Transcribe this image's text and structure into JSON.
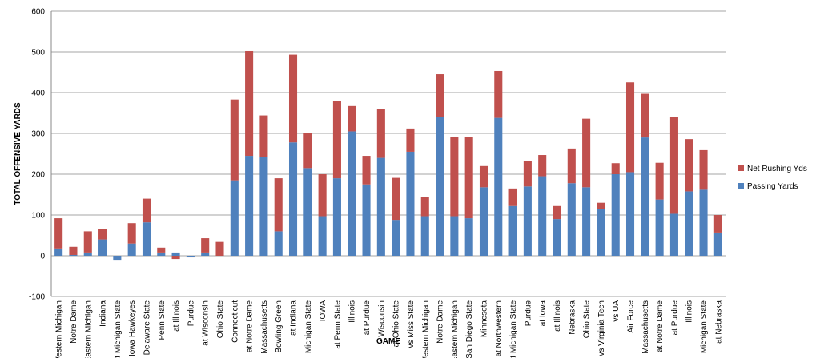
{
  "chart_data": {
    "type": "bar",
    "stacked": true,
    "xlabel": "GAME",
    "ylabel": "TOTAL OFFENSIVE YARDS",
    "ylim": [
      -100,
      600
    ],
    "yticks": [
      -100,
      0,
      100,
      200,
      300,
      400,
      500,
      600
    ],
    "grid": true,
    "legend_position": "right",
    "categories": [
      "Western Michigan",
      "Notre Dame",
      "Eastern Michigan",
      "Indiana",
      "at Michigan State",
      "at Iowa Hawkeyes",
      "Delaware State",
      "Penn State",
      "at Illinois",
      "Purdue",
      "at Wisconsin",
      "Ohio State",
      "Connecticut",
      "at Notre Dame",
      "Massachusetts",
      "Bowling Green",
      "at Indiana",
      "Michigan State",
      "IOWA",
      "at Penn State",
      "Illinois",
      "at Purdue",
      "Wisconsin",
      "at Ohio State",
      "vs Miss State",
      "Western Michigan",
      "Notre Dame",
      "Eastern Michigan",
      "San Diego State",
      "Minnesota",
      "at Northwestern",
      "at Michigan State",
      "Purdue",
      "at Iowa",
      "at Illinois",
      "Nebraska",
      "Ohio State",
      "vs Virginia Tech",
      "vs UA",
      "Air Force",
      "Massachusetts",
      "at Notre Dame",
      "at Purdue",
      "Illinois",
      "Michigan State",
      "at Nebraska"
    ],
    "series": [
      {
        "name": "Passing Yards",
        "color": "#4f81bd",
        "values": [
          18,
          2,
          8,
          40,
          -10,
          30,
          82,
          8,
          8,
          -2,
          8,
          0,
          185,
          245,
          242,
          60,
          278,
          215,
          97,
          190,
          305,
          175,
          240,
          88,
          255,
          97,
          340,
          97,
          92,
          168,
          338,
          122,
          170,
          195,
          90,
          178,
          168,
          115,
          200,
          205,
          290,
          138,
          103,
          158,
          162,
          57
        ]
      },
      {
        "name": "Net Rushing Yds",
        "color": "#c0504d",
        "values": [
          74,
          20,
          52,
          25,
          0,
          50,
          58,
          12,
          -8,
          -2,
          35,
          34,
          198,
          257,
          102,
          130,
          215,
          85,
          103,
          190,
          62,
          70,
          120,
          103,
          57,
          47,
          105,
          195,
          200,
          52,
          115,
          43,
          62,
          52,
          32,
          85,
          168,
          15,
          27,
          220,
          107,
          90,
          237,
          128,
          97,
          43
        ]
      }
    ]
  }
}
